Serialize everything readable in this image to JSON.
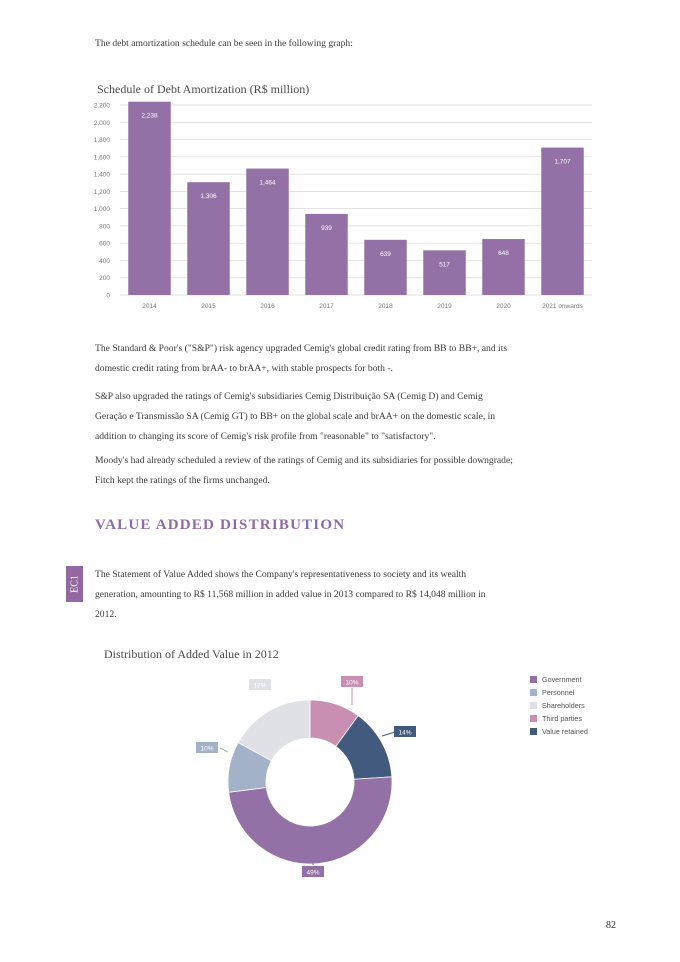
{
  "intro_text": "The debt amortization schedule can be seen in the following graph:",
  "bar_chart_title": "Schedule of Debt Amortization (R$ million)",
  "paragraphs": [
    "The Standard & Poor's (\"S&P\") risk agency upgraded Cemig's global credit rating from BB to BB+, and its domestic credit rating from brAA- to brAA+, with stable prospects for both -.",
    "S&P also upgraded the ratings of Cemig's subsidiaries Cemig Distribuição SA (Cemig D) and Cemig Geração e Transmissão SA (Cemig GT) to BB+ on the global scale and brAA+ on the domestic scale, in addition to changing its score of Cemig's risk profile from \"reasonable\" to \"satisfactory\".",
    "Moody's had already scheduled a review of the ratings of Cemig and its subsidiaries for possible downgrade; Fitch kept the ratings of the firms unchanged."
  ],
  "section_heading": "VALUE ADDED DISTRIBUTION",
  "side_tab_label": "EC1",
  "section_paragraph": "The Statement of Value Added shows the Company's representativeness to society and its wealth generation, amounting to R$ 11,568 million in added value in 2013 compared to R$ 14,048 million in 2012.",
  "donut_chart_title": "Distribution of Added Value in 2012",
  "page_number": "82",
  "colors": {
    "bar": "#9370a5",
    "grid": "#d9d9d9",
    "axis_text": "#777777",
    "heading": "#8f6ca3"
  },
  "chart_data": [
    {
      "type": "bar",
      "title": "Schedule of Debt Amortization (R$ million)",
      "categories": [
        "2014",
        "2015",
        "2016",
        "2017",
        "2018",
        "2019",
        "2020",
        "2021 onwards"
      ],
      "values": [
        2238,
        1306,
        1464,
        939,
        639,
        517,
        648,
        1707
      ],
      "data_labels": [
        "2,238",
        "1,306",
        "1,464",
        "939",
        "639",
        "517",
        "648",
        "1,707"
      ],
      "y_ticks": [
        "0",
        "200",
        "400",
        "600",
        "800",
        "1,000",
        "1,200",
        "1,400",
        "1,600",
        "1,800",
        "2,000",
        "2,200"
      ],
      "ylim": [
        0,
        2200
      ],
      "grid": true
    },
    {
      "type": "pie",
      "title": "Distribution of Added Value in 2012",
      "slices": [
        {
          "name": "Government",
          "value": 49,
          "label": "49%",
          "color": "#9370a5"
        },
        {
          "name": "Personnel",
          "value": 10,
          "label": "10%",
          "color": "#a3b2c9"
        },
        {
          "name": "Shareholders",
          "value": 17,
          "label": "17%",
          "color": "#e0e1e6"
        },
        {
          "name": "Third parties",
          "value": 10,
          "label": "10%",
          "color": "#c98fb2"
        },
        {
          "name": "Value retained",
          "value": 14,
          "label": "14%",
          "color": "#425a7d"
        }
      ],
      "legend_position": "right"
    }
  ]
}
